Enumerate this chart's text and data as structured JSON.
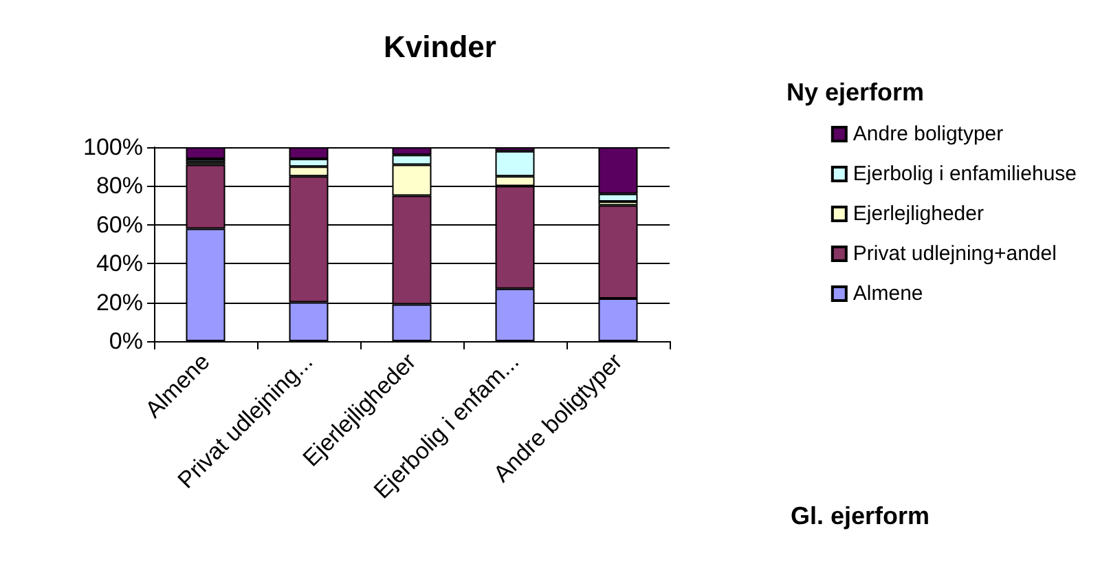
{
  "chart_data": {
    "type": "bar",
    "title": "Kvinder",
    "xlabel": "Gl. ejerform",
    "legend_title": "Ny ejerform",
    "categories": [
      "Almene",
      "Privat udlejning...",
      "Ejerlejligheder",
      "Ejerbolig i enfam...",
      "Andre boligtyper"
    ],
    "stacked": true,
    "grid": "y",
    "legend": "right",
    "ylim": [
      0,
      100
    ],
    "yticks": [
      {
        "value": 0,
        "label": "0%"
      },
      {
        "value": 20,
        "label": "20%"
      },
      {
        "value": 40,
        "label": "40%"
      },
      {
        "value": 60,
        "label": "60%"
      },
      {
        "value": 80,
        "label": "80%"
      },
      {
        "value": 100,
        "label": "100%"
      }
    ],
    "series": [
      {
        "name": "Almene",
        "color": "#9999ff",
        "values": [
          58,
          20,
          19,
          27,
          22
        ]
      },
      {
        "name": "Privat udlejning+andel",
        "color": "#873562",
        "values": [
          33,
          65,
          56,
          53,
          48
        ]
      },
      {
        "name": "Ejerlejligheder",
        "color": "#ffffcc",
        "values": [
          1.5,
          5,
          16,
          5,
          2
        ]
      },
      {
        "name": "Ejerbolig i enfamiliehuse",
        "color": "#ccffff",
        "values": [
          1.5,
          4,
          5,
          13,
          4
        ]
      },
      {
        "name": "Andre boligtyper",
        "color": "#5a0060",
        "values": [
          6,
          6,
          4,
          2,
          24
        ]
      }
    ]
  }
}
